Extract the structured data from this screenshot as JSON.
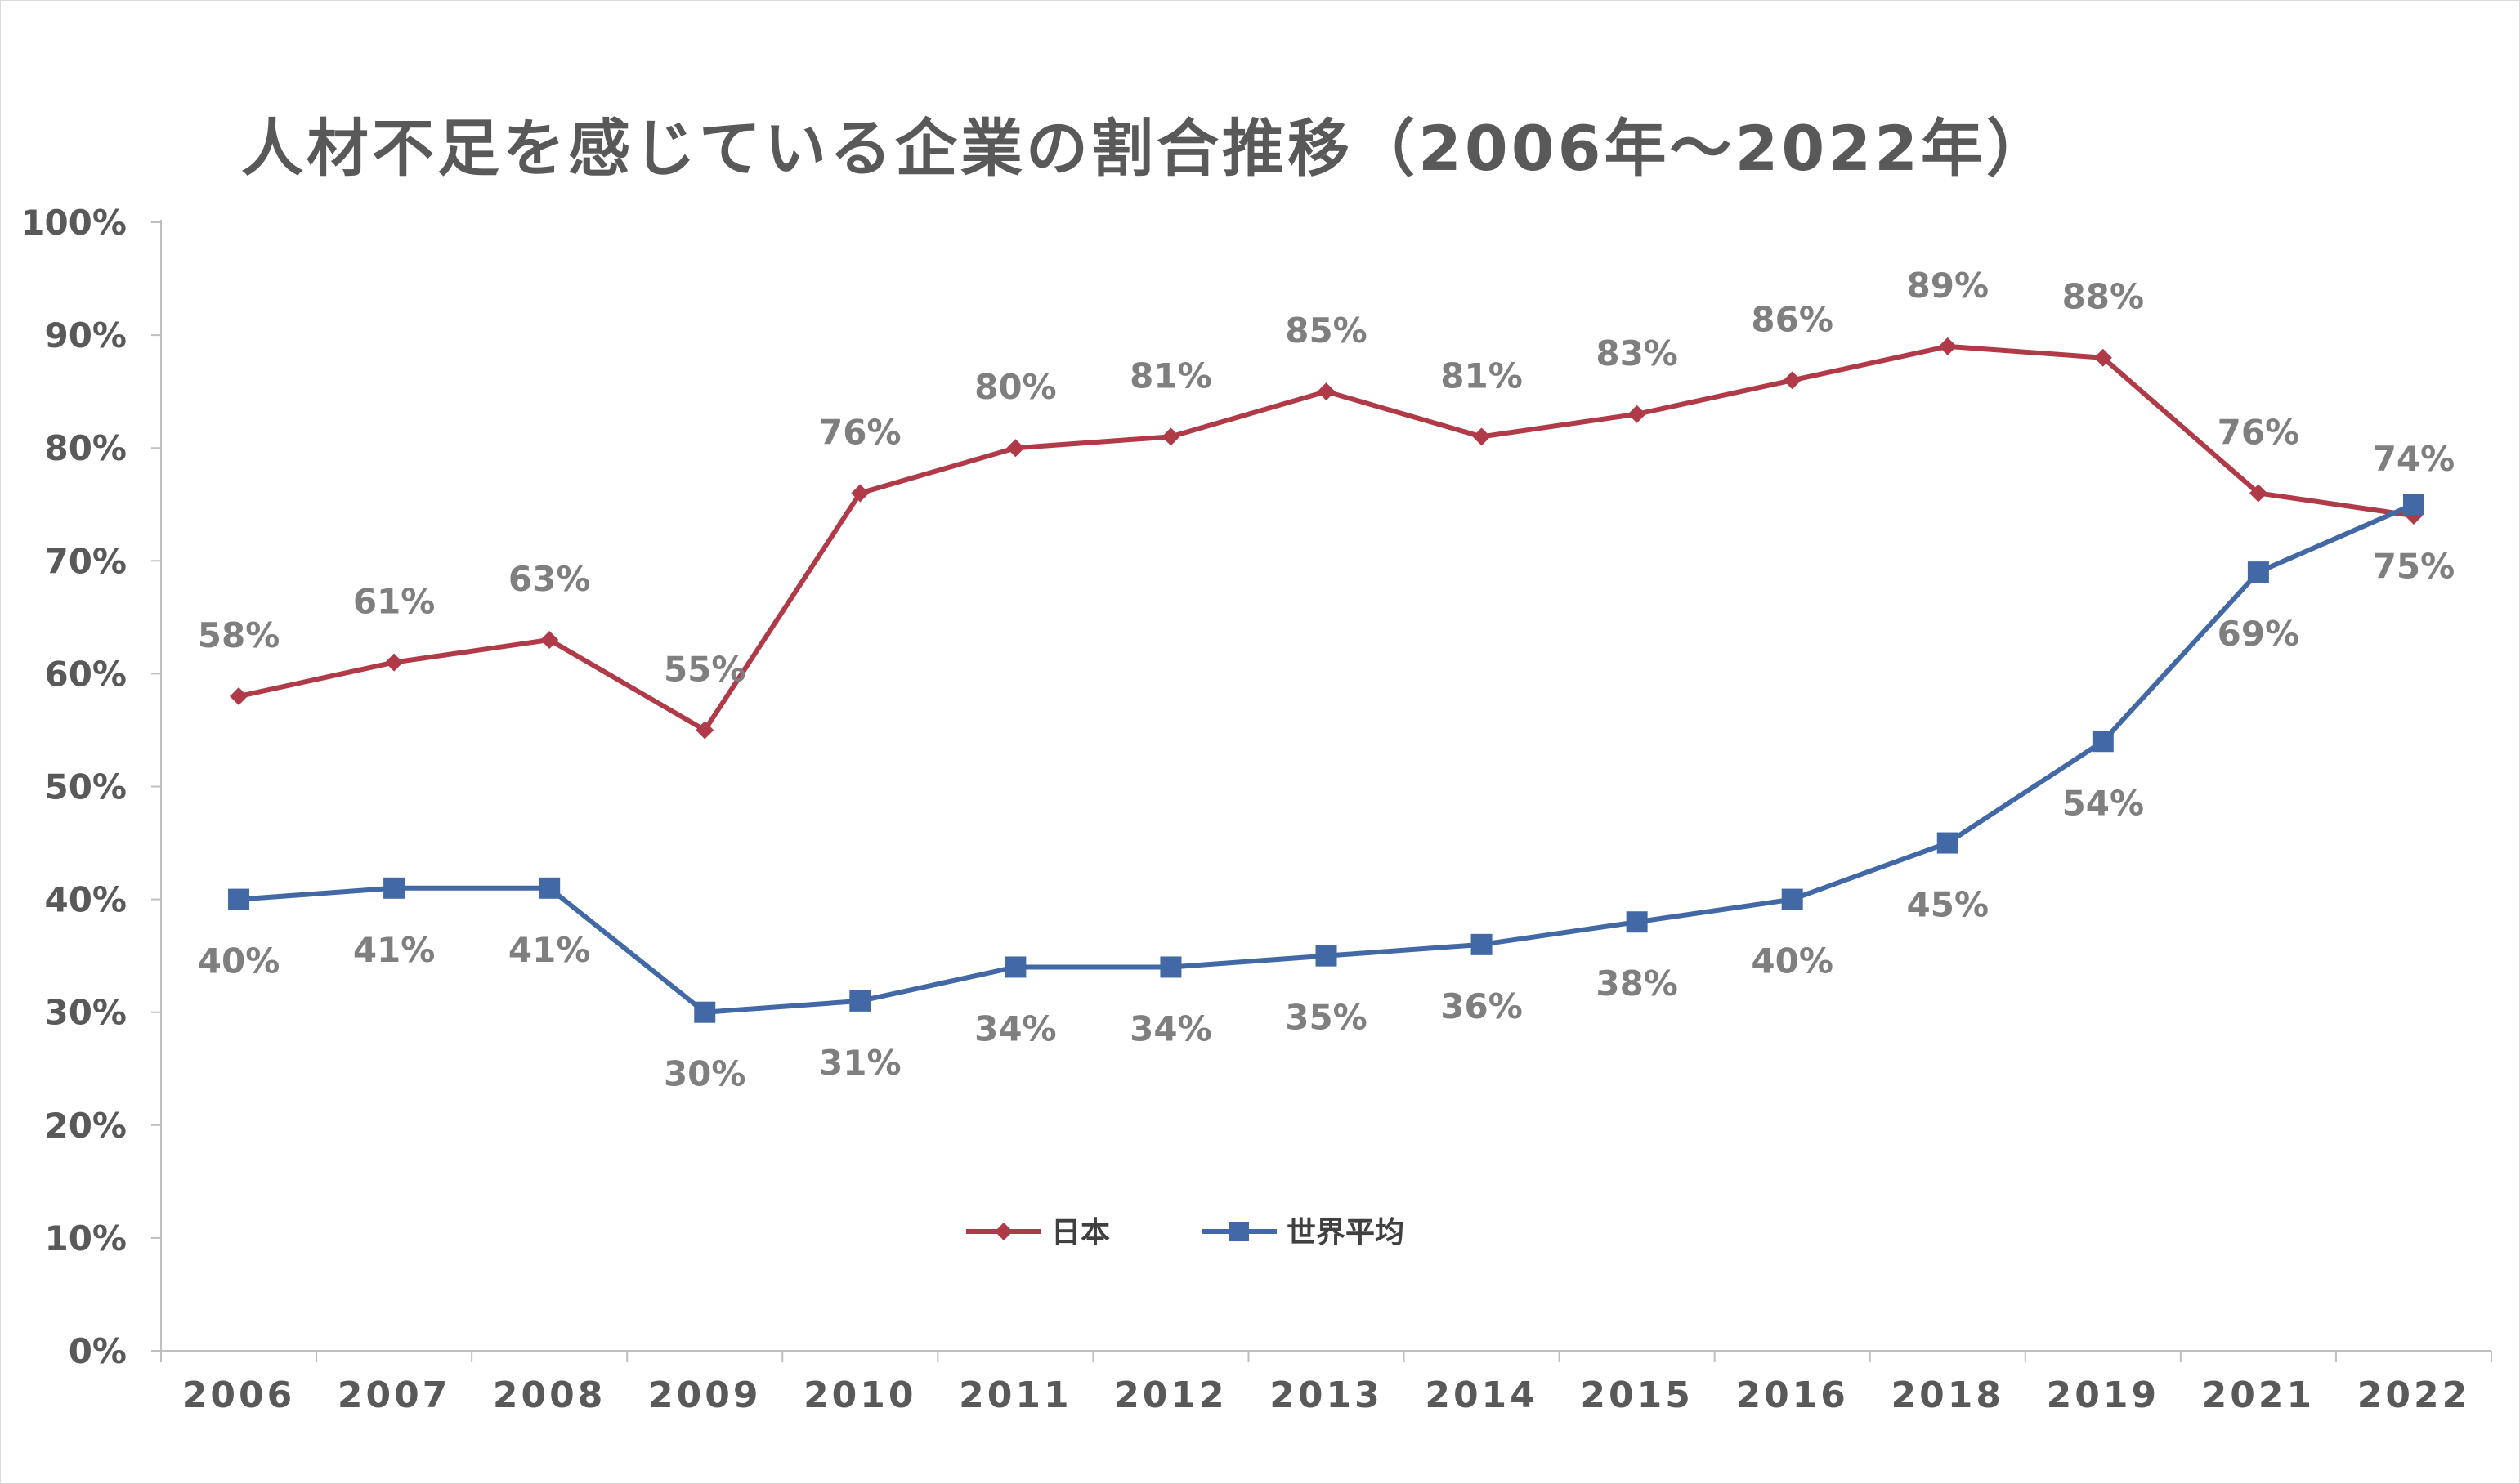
{
  "chart_data": {
    "type": "line",
    "title": "人材不足を感じている企業の割合推移（2006年～2022年）",
    "categories": [
      "2006",
      "2007",
      "2008",
      "2009",
      "2010",
      "2011",
      "2012",
      "2013",
      "2014",
      "2015",
      "2016",
      "2018",
      "2019",
      "2021",
      "2022"
    ],
    "series": [
      {
        "name": "日本",
        "color": "#b03a48",
        "marker": "diamond",
        "values": [
          58,
          61,
          63,
          55,
          76,
          80,
          81,
          85,
          81,
          83,
          86,
          89,
          88,
          76,
          74
        ],
        "labels": [
          "58%",
          "61%",
          "63%",
          "55%",
          "76%",
          "80%",
          "81%",
          "85%",
          "81%",
          "83%",
          "86%",
          "89%",
          "88%",
          "76%",
          "74%"
        ]
      },
      {
        "name": "世界平均",
        "color": "#4269a5",
        "marker": "square",
        "values": [
          40,
          41,
          41,
          30,
          31,
          34,
          34,
          35,
          36,
          38,
          40,
          45,
          54,
          69,
          75
        ],
        "labels": [
          "40%",
          "41%",
          "41%",
          "30%",
          "31%",
          "34%",
          "34%",
          "35%",
          "36%",
          "38%",
          "40%",
          "45%",
          "54%",
          "69%",
          "75%"
        ]
      }
    ],
    "ylim": [
      0,
      100
    ],
    "yticks": [
      "0%",
      "10%",
      "20%",
      "30%",
      "40%",
      "50%",
      "60%",
      "70%",
      "80%",
      "90%",
      "100%"
    ],
    "xlabel": "",
    "ylabel": "",
    "grid": false,
    "legend": "bottom-center"
  }
}
